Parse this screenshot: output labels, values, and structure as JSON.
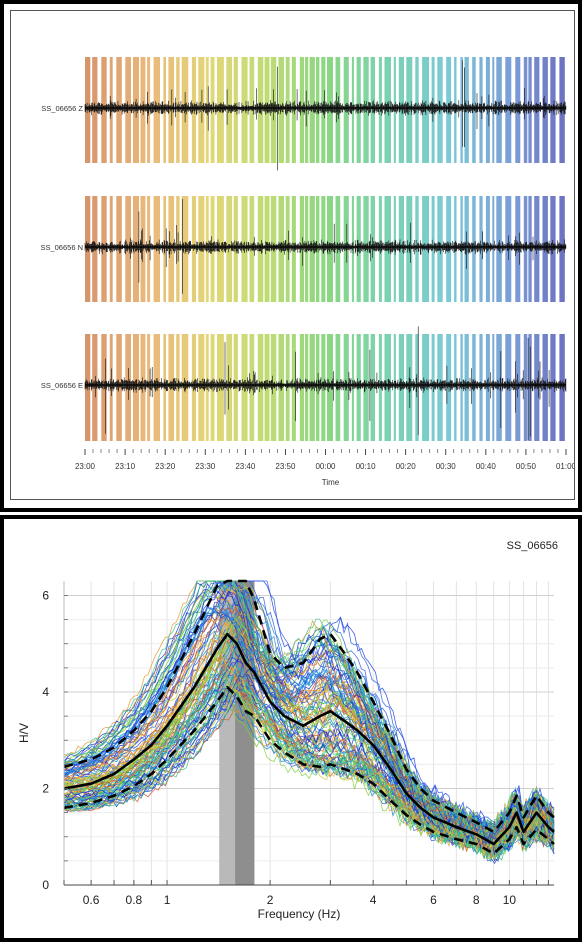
{
  "chart_data": [
    {
      "type": "line",
      "chart": "seismic-waveforms",
      "traces": [
        "SS_06656 Z",
        "SS_06656 N",
        "SS_06656 E"
      ],
      "x_ticks": [
        "23:00",
        "23:10",
        "23:20",
        "23:30",
        "23:40",
        "23:50",
        "00:00",
        "00:10",
        "00:20",
        "00:30",
        "00:40",
        "00:50",
        "01:00"
      ],
      "xlabel": "Time",
      "window_colors": [
        "#c8733a",
        "#e2a050",
        "#d9c84a",
        "#a9d046",
        "#63c85a",
        "#4fc39a",
        "#4fb7c8",
        "#4f7fcc",
        "#3a3fa8"
      ]
    },
    {
      "type": "line",
      "chart": "hv-curves",
      "station": "SS_06656",
      "xlabel": "Frequency (Hz)",
      "ylabel": "H/V",
      "xscale": "log",
      "xlim": [
        0.5,
        13.5
      ],
      "ylim": [
        0,
        6.3
      ],
      "x_tick_labels": [
        {
          "v": 0.6,
          "t": "0.6"
        },
        {
          "v": 0.8,
          "t": "0.8"
        },
        {
          "v": 1,
          "t": "1"
        },
        {
          "v": 2,
          "t": "2"
        },
        {
          "v": 4,
          "t": "4"
        },
        {
          "v": 6,
          "t": "6"
        },
        {
          "v": 8,
          "t": "8"
        },
        {
          "v": 10,
          "t": "10"
        }
      ],
      "y_ticks": [
        0,
        2,
        4,
        6
      ],
      "peak_band": {
        "f0_min": 1.42,
        "f0_mean": 1.58,
        "f0_max": 1.8
      },
      "x": [
        0.5,
        0.6,
        0.7,
        0.8,
        0.9,
        1.0,
        1.2,
        1.4,
        1.5,
        1.6,
        1.7,
        1.8,
        2.0,
        2.2,
        2.5,
        2.8,
        3.0,
        3.3,
        3.6,
        4.0,
        4.5,
        5.0,
        5.5,
        6.0,
        7.0,
        8.0,
        9.0,
        10.0,
        10.5,
        11.0,
        12.0,
        13.0,
        13.5
      ],
      "series": [
        {
          "role": "mean",
          "values": [
            2.0,
            2.1,
            2.3,
            2.6,
            2.9,
            3.3,
            4.1,
            4.9,
            5.2,
            5.0,
            4.6,
            4.4,
            3.8,
            3.5,
            3.3,
            3.5,
            3.6,
            3.4,
            3.2,
            2.9,
            2.4,
            1.9,
            1.6,
            1.4,
            1.2,
            1.05,
            0.85,
            1.2,
            1.5,
            1.1,
            1.5,
            1.2,
            1.1
          ]
        },
        {
          "role": "mean+std",
          "values": [
            2.45,
            2.6,
            2.85,
            3.2,
            3.6,
            4.1,
            5.2,
            6.2,
            6.3,
            6.3,
            6.3,
            5.9,
            4.8,
            4.5,
            4.6,
            5.1,
            5.2,
            4.8,
            4.4,
            3.8,
            3.1,
            2.4,
            2.0,
            1.75,
            1.5,
            1.3,
            1.1,
            1.5,
            1.85,
            1.4,
            1.85,
            1.5,
            1.4
          ]
        },
        {
          "role": "mean-std",
          "values": [
            1.6,
            1.7,
            1.85,
            2.05,
            2.3,
            2.6,
            3.2,
            3.8,
            4.1,
            3.9,
            3.6,
            3.5,
            3.0,
            2.75,
            2.5,
            2.45,
            2.5,
            2.4,
            2.3,
            2.1,
            1.75,
            1.45,
            1.25,
            1.1,
            0.95,
            0.85,
            0.65,
            0.95,
            1.2,
            0.85,
            1.15,
            0.95,
            0.85
          ]
        }
      ]
    }
  ]
}
